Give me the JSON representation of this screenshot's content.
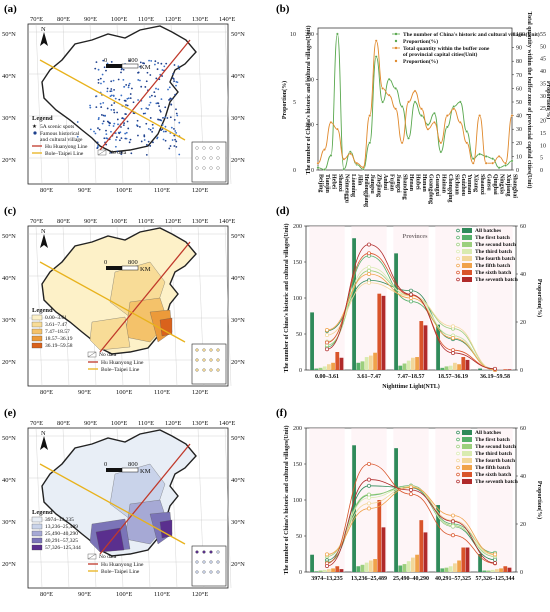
{
  "panels": {
    "a": "(a)",
    "b": "(b)",
    "c": "(c)",
    "d": "(d)",
    "e": "(e)",
    "f": "(f)"
  },
  "maps": {
    "lon_ticks": [
      "70°E",
      "80°E",
      "90°E",
      "100°E",
      "110°E",
      "120°E",
      "130°E",
      "140°E"
    ],
    "lat_ticks": [
      "50°N",
      "40°N",
      "30°N",
      "20°N"
    ],
    "bottom_lon_ticks": [
      "80°E",
      "90°E",
      "100°E",
      "110°E",
      "120°E"
    ],
    "scale_0": "0",
    "scale_800": "800",
    "scale_km": "KM",
    "north_letter": "N",
    "legend_title": "Legend",
    "line_huhuanyong": "Hu Huanyong Line",
    "line_bole": "Bole–Taipei Line",
    "no_data": "No data",
    "a_legend": [
      "5A scenic spots",
      "Famous historical",
      "and cultural village"
    ],
    "c_legend": [
      "0.00–3.61",
      "3.61–7.47",
      "7.47–18.57",
      "18.57–36.19",
      "36.19–59.58"
    ],
    "c_colors": [
      "#fdf1c8",
      "#f8dc97",
      "#f4c26a",
      "#ec9a3a",
      "#d9621c"
    ],
    "e_legend": [
      "3974–13,235",
      "13,236–25,489",
      "25,490–40,290",
      "40,291–57,325",
      "57,326–125,344"
    ],
    "e_colors": [
      "#e8eef6",
      "#c9d3ea",
      "#a6a9d5",
      "#7b74b8",
      "#5a2f8e"
    ]
  },
  "legend_b": [
    "The number of China's historic and cultural villages(Unit)",
    "Proportion(%)",
    "Total quantity within the buffer zone",
    "of provincial capital cities(Unit)",
    "Proportion(%)"
  ],
  "colors": {
    "green_line": "#5aa84f",
    "orange_line": "#e08a2e",
    "all": "#2f8a5a",
    "first": "#57b06a",
    "second": "#9ccf7d",
    "third": "#d9ebb0",
    "fourth": "#f2d79a",
    "fifth": "#f0a24a",
    "sixth": "#d9542a",
    "seventh": "#b02a2a"
  },
  "chart_data": [
    {
      "id": "b",
      "type": "line",
      "title": "",
      "xlabel": "Provinces",
      "ylabel_left_outer": "Proportion(%)",
      "ylabel_left": "The number of China's historic and cultural villages(Unit)",
      "ylabel_right": "Total quantity within the buffer zone of provincial capital cities(Unit)",
      "ylabel_right_outer": "Proportion(%)",
      "categories": [
        "Beijing",
        "Tianjin",
        "Hebei",
        "Shanxi",
        "Neimenggu",
        "Liaoning",
        "Jilin",
        "Heilongjiang",
        "Jiangsu",
        "Zhejiang",
        "Anhui",
        "Fujian",
        "Jiangxi",
        "Shandong",
        "Henan",
        "Hubei",
        "Hunan",
        "Guangdong",
        "Guangxi",
        "Hainan",
        "Chongqing",
        "Sichuan",
        "Guizhou",
        "Yunnan",
        "Xizang",
        "Shaanxi",
        "Gansu",
        "Qinghai",
        "Ningxia",
        "Xinjiang",
        "Shanghai"
      ],
      "left_ticks": [
        0,
        100,
        200,
        300
      ],
      "right_ticks": [
        0,
        10,
        20,
        30,
        40,
        50,
        60,
        70,
        80,
        90,
        100
      ],
      "left_pct_ticks": [
        0,
        5,
        10
      ],
      "right_pct_ticks": [
        0,
        5,
        10,
        15,
        20,
        25,
        30,
        35,
        40,
        45,
        50,
        55
      ],
      "series": [
        {
          "name": "The number of China's historic and cultural villages(Unit)",
          "axis": "left",
          "values": [
            5,
            1,
            32,
            300,
            2,
            40,
            12,
            2,
            60,
            250,
            150,
            200,
            180,
            140,
            70,
            150,
            120,
            100,
            125,
            40,
            95,
            140,
            150,
            85,
            25,
            35,
            30,
            25,
            5,
            10,
            20
          ]
        },
        {
          "name": "Total quantity within the buffer zone of provincial capital cities(Unit)",
          "axis": "right",
          "values": [
            5,
            15,
            35,
            30,
            8,
            12,
            5,
            2,
            40,
            95,
            60,
            55,
            45,
            20,
            50,
            58,
            45,
            30,
            35,
            20,
            40,
            45,
            35,
            20,
            5,
            40,
            5,
            5,
            10,
            5,
            40
          ]
        }
      ]
    },
    {
      "id": "d",
      "type": "bar",
      "xlabel": "Nighttime Light(NTL)",
      "ylabel": "The number of China's historic and cultural villages(Unit)",
      "ylabel_right": "Proportion(%)",
      "categories": [
        "0.00–3.61",
        "3.61–7.47",
        "7.47–18.57",
        "18.57–36.19",
        "36.19–59.58"
      ],
      "ylim": [
        0,
        200
      ],
      "y_ticks": [
        0,
        50,
        100,
        150,
        200
      ],
      "y2lim": [
        0,
        60
      ],
      "y2_ticks": [
        0,
        20,
        40,
        60
      ],
      "series": [
        {
          "name": "All batches",
          "values": [
            80,
            183,
            162,
            63,
            2
          ]
        },
        {
          "name": "The first batch",
          "values": [
            2,
            10,
            6,
            3,
            0
          ]
        },
        {
          "name": "The second batch",
          "values": [
            3,
            12,
            9,
            5,
            0
          ]
        },
        {
          "name": "The third batch",
          "values": [
            5,
            18,
            13,
            6,
            0
          ]
        },
        {
          "name": "The fourth batch",
          "values": [
            8,
            20,
            17,
            10,
            0
          ]
        },
        {
          "name": "The fifth batch",
          "values": [
            10,
            24,
            18,
            8,
            0
          ]
        },
        {
          "name": "The sixth batch",
          "values": [
            25,
            106,
            68,
            18,
            1
          ]
        },
        {
          "name": "The seventh batch",
          "values": [
            17,
            103,
            62,
            14,
            1
          ]
        }
      ]
    },
    {
      "id": "f",
      "type": "bar",
      "xlabel": "",
      "ylabel": "The number of China's historic and cultural villages(Unit)",
      "ylabel_right": "Proportion(%)",
      "categories": [
        "3974–13,235",
        "13,236–25,489",
        "25,490–40,290",
        "40,291–57,325",
        "57,326–125,344"
      ],
      "ylim": [
        0,
        200
      ],
      "y_ticks": [
        0,
        50,
        100,
        150,
        200
      ],
      "y2lim": [
        0,
        60
      ],
      "y2_ticks": [
        0,
        20,
        40,
        60
      ],
      "series": [
        {
          "name": "All batches",
          "values": [
            24,
            176,
            172,
            93,
            25
          ]
        },
        {
          "name": "The first batch",
          "values": [
            1,
            8,
            9,
            5,
            2
          ]
        },
        {
          "name": "The second batch",
          "values": [
            2,
            10,
            11,
            6,
            2
          ]
        },
        {
          "name": "The third batch",
          "values": [
            3,
            13,
            15,
            8,
            3
          ]
        },
        {
          "name": "The fourth batch",
          "values": [
            4,
            16,
            20,
            12,
            4
          ]
        },
        {
          "name": "The fifth batch",
          "values": [
            5,
            18,
            24,
            16,
            5
          ]
        },
        {
          "name": "The sixth batch",
          "values": [
            8,
            100,
            72,
            34,
            8
          ]
        },
        {
          "name": "The seventh batch",
          "values": [
            4,
            62,
            55,
            34,
            6
          ]
        }
      ]
    }
  ]
}
